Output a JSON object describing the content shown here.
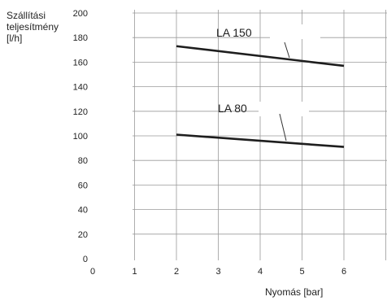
{
  "chart_data": {
    "type": "line",
    "ylabel": [
      "Szállítási",
      "teljesítmény",
      "[l/h]"
    ],
    "xlabel": "Nyomás [bar]",
    "xlim": [
      0,
      6
    ],
    "ylim": [
      0,
      200
    ],
    "x_ticks": [
      0,
      1,
      2,
      3,
      4,
      5,
      6
    ],
    "y_ticks": [
      0,
      20,
      40,
      60,
      80,
      100,
      120,
      140,
      160,
      180,
      200
    ],
    "grid": true,
    "series": [
      {
        "name": "LA 150",
        "x": [
          2,
          6
        ],
        "y": [
          173,
          157
        ]
      },
      {
        "name": "LA 80",
        "x": [
          2,
          6
        ],
        "y": [
          101,
          91
        ]
      }
    ]
  }
}
